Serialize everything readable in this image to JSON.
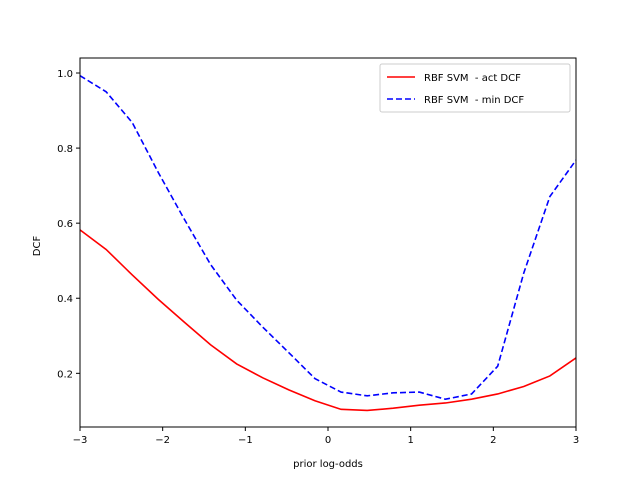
{
  "chart_data": {
    "type": "line",
    "title": "",
    "xlabel": "prior log-odds",
    "ylabel": "DCF",
    "xlim": [
      -3,
      3
    ],
    "ylim": [
      0.057,
      1.04
    ],
    "x_ticks": [
      -3,
      -2,
      -1,
      0,
      1,
      2,
      3
    ],
    "x_tick_labels": [
      "−3",
      "−2",
      "−1",
      "0",
      "1",
      "2",
      "3"
    ],
    "y_ticks": [
      0.2,
      0.4,
      0.6,
      0.8,
      1.0
    ],
    "y_tick_labels": [
      "0.2",
      "0.4",
      "0.6",
      "0.8",
      "1.0"
    ],
    "grid": false,
    "legend_position": "top-right",
    "x": [
      -3.0,
      -2.684,
      -2.368,
      -2.053,
      -1.737,
      -1.421,
      -1.105,
      -0.789,
      -0.474,
      -0.158,
      0.158,
      0.474,
      0.789,
      1.105,
      1.421,
      1.737,
      2.053,
      2.368,
      2.684,
      3.0
    ],
    "series": [
      {
        "name": "RBF SVM  - act DCF",
        "color": "#ff0000",
        "dash": "solid",
        "values": [
          0.582,
          0.53,
          0.462,
          0.397,
          0.336,
          0.276,
          0.225,
          0.188,
          0.156,
          0.127,
          0.104,
          0.101,
          0.107,
          0.115,
          0.121,
          0.131,
          0.145,
          0.165,
          0.193,
          0.241
        ]
      },
      {
        "name": "RBF SVM  - min DCF",
        "color": "#0000ff",
        "dash": "dashed",
        "values": [
          0.993,
          0.95,
          0.868,
          0.735,
          0.61,
          0.49,
          0.395,
          0.323,
          0.255,
          0.186,
          0.15,
          0.14,
          0.148,
          0.15,
          0.131,
          0.145,
          0.219,
          0.467,
          0.671,
          0.768
        ]
      }
    ]
  }
}
